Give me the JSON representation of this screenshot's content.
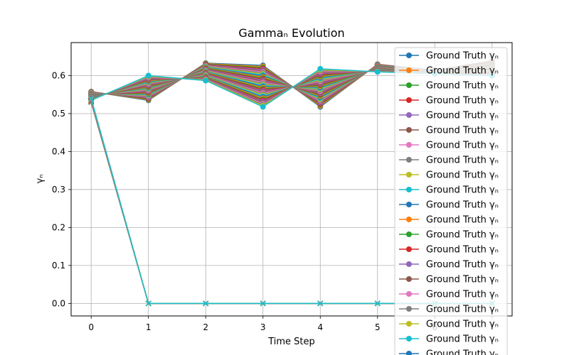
{
  "chart_data": {
    "type": "line",
    "title": "Gammaₙ Evolution",
    "xlabel": "Time Step",
    "ylabel": "γₙ",
    "xlim": [
      -0.35,
      7.35
    ],
    "ylim": [
      -0.033,
      0.687
    ],
    "xticks": [
      0,
      1,
      2,
      3,
      4,
      5,
      6,
      7
    ],
    "yticks": [
      0.0,
      0.1,
      0.2,
      0.3,
      0.4,
      0.5,
      0.6
    ],
    "x": [
      0,
      1,
      2,
      3,
      4,
      5,
      6,
      7
    ],
    "grid": true,
    "legend_position": "right",
    "legend_label": "Ground Truth γₙ",
    "legend_rows_visible": 21,
    "palette": [
      "#1f77b4",
      "#ff7f0e",
      "#2ca02c",
      "#d62728",
      "#9467bd",
      "#8c564b",
      "#e377c2",
      "#7f7f7f",
      "#bcbd22",
      "#17becf"
    ],
    "ground_truth_band": {
      "lines": 40,
      "top": [
        0.558,
        0.535,
        0.633,
        0.627,
        0.518,
        0.63,
        0.614,
        0.639
      ],
      "bottom": [
        0.535,
        0.6,
        0.587,
        0.518,
        0.618,
        0.61,
        0.605,
        0.6
      ]
    },
    "prediction_lines": {
      "count": 10,
      "marker": "x",
      "y_start": [
        0.53,
        0.54
      ],
      "y_after": 0.0
    }
  }
}
